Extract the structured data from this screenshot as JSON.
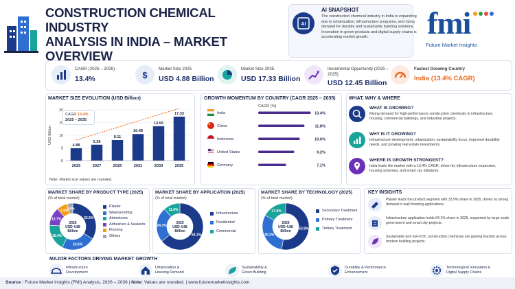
{
  "header": {
    "title_line1": "CONSTRUCTION CHEMICAL INDUSTRY",
    "title_line2": "ANALYSIS IN INDIA – MARKET OVERVIEW"
  },
  "snapshot": {
    "title": "AI SNAPSHOT",
    "icon": "ai-chip-icon",
    "text": "The construction chemical industry in India is expanding due to urbanization, infrastructure programs, and rising demand for durable and sustainable building solutions. Innovation in green products and digital supply chains is accelerating market growth."
  },
  "logo": {
    "text": "fmi",
    "subtitle": "Future Market Insights"
  },
  "kpis": [
    {
      "label": "CAGR (2025 – 2035)",
      "value": "13.4%",
      "icon": "bar-chart-icon"
    },
    {
      "label": "Market Size 2025",
      "value": "USD 4.88 Billion",
      "icon": "dollar-icon"
    },
    {
      "label": "Market Size 2035",
      "value": "USD 17.33 Billion",
      "icon": "pie-icon"
    },
    {
      "label": "Incremental Opportunity (2025 – 2035)",
      "value": "USD 12.45 Billion",
      "icon": "growth-icon"
    },
    {
      "label": "Fastest Growing Country",
      "value": "India (13.4% CAGR)",
      "icon": "gauge-icon"
    }
  ],
  "size_panel": {
    "title": "MARKET SIZE EVOLUTION (USD Billion)",
    "callout_l1": "CAGR",
    "callout_v": "13.4%",
    "callout_l2": "2025 – 2035",
    "note": "Note: Market size values are rounded."
  },
  "growth_panel": {
    "title": "GROWTH MOMENTUM BY COUNTRY (CAGR 2025 – 2035)",
    "subtitle": "CAGR (%)"
  },
  "ww": {
    "title": "WHAT, WHY & WHERE",
    "items": [
      {
        "h": "WHAT IS GROWING?",
        "t": "Rising demand for high-performance construction chemicals in infrastructure, housing, commercial buildings, and industrial projects.",
        "icon": "search-icon"
      },
      {
        "h": "WHY IS IT GROWING?",
        "t": "Infrastructure development, urbanization, sustainability focus, improved durability needs, and growing real estate investments.",
        "icon": "trend-icon"
      },
      {
        "h": "WHERE IS GROWTH STRONGEST?",
        "t": "India leads the market with a 13.4% CAGR, driven by infrastructure expansion, housing schemes, and smart city initiatives.",
        "icon": "location-icon"
      }
    ]
  },
  "donuts": [
    {
      "title": "MARKET SHARE BY PRODUCT TYPE (2025)",
      "sub": "(% of total market)",
      "center": [
        "2025",
        "USD 4.88",
        "Billion"
      ]
    },
    {
      "title": "MARKET SHARE BY APPLICATION (2025)",
      "sub": "(% of total market)",
      "center": [
        "2025",
        "USD 4.88",
        "Billion"
      ]
    },
    {
      "title": "MARKET SHARE BY TECHNOLOGY (2025)",
      "sub": "(% of total market)",
      "center": [
        "2025",
        "USD 4.88",
        "Billion"
      ]
    }
  ],
  "insights": {
    "title": "KEY INSIGHTS",
    "items": [
      {
        "t": "Plaster leads the product segment with 33.9% share in 2025, driven by strong demand in wall finishing applications.",
        "icon": "trowel-icon"
      },
      {
        "t": "Infrastructure application holds 64.1% share in 2025, supported by large-scale government and smart city projects.",
        "icon": "building-icon"
      },
      {
        "t": "Sustainable and low-VOC construction chemicals are gaining traction across modern building projects.",
        "icon": "leaf-icon"
      }
    ]
  },
  "factors": {
    "title": "MAJOR FACTORS DRIVING MARKET GROWTH",
    "items": [
      {
        "l1": "Infrastructure",
        "l2": "Development",
        "icon": "bridge-icon"
      },
      {
        "l1": "Urbanization &",
        "l2": "Housing Demand",
        "icon": "house-icon"
      },
      {
        "l1": "Sustainability &",
        "l2": "Green Building",
        "icon": "leaf-icon"
      },
      {
        "l1": "Durability & Performance",
        "l2": "Enhancement",
        "icon": "shield-icon"
      },
      {
        "l1": "Technological Innovation &",
        "l2": "Digital Supply Chains",
        "icon": "gear-icon"
      }
    ]
  },
  "source": {
    "a": "Source :",
    "b": " Future Market Insights (FMI) Analysis, 2026 – 2036 | ",
    "c": "Note:",
    "d": " Values are rounded. | www.futuremarketinsights.com"
  },
  "chart_data": [
    {
      "type": "bar",
      "title": "MARKET SIZE EVOLUTION (USD Billion)",
      "categories": [
        "2025",
        "2027",
        "2029",
        "2031",
        "2033",
        "2035"
      ],
      "values": [
        4.88,
        6.28,
        8.11,
        10.48,
        13.55,
        17.33
      ],
      "ylabel": "USD Billion",
      "ylim": [
        0,
        20
      ],
      "yticks": [
        0,
        5,
        10,
        15,
        20
      ],
      "color": "#1b3a8a"
    },
    {
      "type": "bar",
      "orientation": "horizontal",
      "title": "GROWTH MOMENTUM BY COUNTRY (CAGR 2025 – 2035)",
      "categories": [
        "India",
        "China",
        "Indonesia",
        "United States",
        "Germany"
      ],
      "values": [
        13.4,
        11.8,
        10.6,
        9.2,
        7.1
      ],
      "value_labels": [
        "13.4%",
        "11.8%",
        "10.6%",
        "9.2%",
        "7.1%"
      ],
      "xlabel": "CAGR (%)",
      "color": "#4b2b8f"
    },
    {
      "type": "pie",
      "title": "MARKET SHARE BY PRODUCT TYPE (2025)",
      "categories": [
        "Plaster",
        "Waterproofing",
        "Admixtures",
        "Adhesives & Sealants",
        "Flooring",
        "Others"
      ],
      "values": [
        33.9,
        23.6,
        18.4,
        12.7,
        7.6,
        3.8
      ],
      "labels": [
        "33.9%",
        "23.6%",
        "18.4%",
        "12.7%",
        "7.6%",
        "3.8%"
      ],
      "colors": [
        "#1b3a8a",
        "#2e6fd1",
        "#1aa39a",
        "#7b3fc4",
        "#f39c12",
        "#9aa3b3"
      ]
    },
    {
      "type": "pie",
      "title": "MARKET SHARE BY APPLICATION (2025)",
      "categories": [
        "Infrastructure",
        "Residential",
        "Commercial"
      ],
      "values": [
        64.1,
        24.3,
        11.6
      ],
      "labels": [
        "64.1%",
        "24.3%",
        "11.6%"
      ],
      "colors": [
        "#1b3a8a",
        "#2e6fd1",
        "#1aa39a"
      ]
    },
    {
      "type": "pie",
      "title": "MARKET SHARE BY TECHNOLOGY (2025)",
      "categories": [
        "Secondary Treatment",
        "Primary Treatment",
        "Tertiary Treatment"
      ],
      "values": [
        52.8,
        30.2,
        17.0
      ],
      "labels": [
        "52.8%",
        "30.2%",
        "17.0%"
      ],
      "colors": [
        "#1b3a8a",
        "#2e6fd1",
        "#1aa39a"
      ]
    }
  ]
}
